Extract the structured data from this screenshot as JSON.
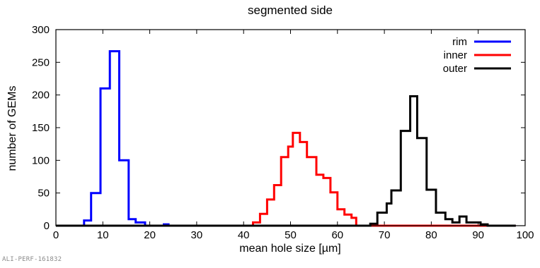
{
  "chart_data": {
    "type": "step-histogram",
    "title": "segmented side",
    "xlabel": "mean hole size [µm]",
    "ylabel": "number of GEMs",
    "xlim": [
      0,
      100
    ],
    "ylim": [
      0,
      300
    ],
    "xticks": [
      0,
      10,
      20,
      30,
      40,
      50,
      60,
      70,
      80,
      90,
      100
    ],
    "yticks": [
      0,
      50,
      100,
      150,
      200,
      250,
      300
    ],
    "grid": false,
    "legend_position": "top-right",
    "series": [
      {
        "name": "rim",
        "color": "#0000ff",
        "points": [
          [
            0,
            0
          ],
          [
            6,
            0
          ],
          [
            6,
            8
          ],
          [
            7.5,
            8
          ],
          [
            7.5,
            50
          ],
          [
            9.5,
            50
          ],
          [
            9.5,
            210
          ],
          [
            11.5,
            210
          ],
          [
            11.5,
            267
          ],
          [
            13.5,
            267
          ],
          [
            13.5,
            100
          ],
          [
            15.5,
            100
          ],
          [
            15.5,
            10
          ],
          [
            17,
            10
          ],
          [
            17,
            5
          ],
          [
            19,
            5
          ],
          [
            19,
            0
          ],
          [
            23,
            0
          ],
          [
            23,
            2
          ],
          [
            24,
            2
          ],
          [
            24,
            0
          ],
          [
            98,
            0
          ]
        ]
      },
      {
        "name": "inner",
        "color": "#ff0000",
        "points": [
          [
            0,
            0
          ],
          [
            42,
            0
          ],
          [
            42,
            5
          ],
          [
            43.5,
            5
          ],
          [
            43.5,
            18
          ],
          [
            45,
            18
          ],
          [
            45,
            40
          ],
          [
            46.5,
            40
          ],
          [
            46.5,
            62
          ],
          [
            48,
            62
          ],
          [
            48,
            105
          ],
          [
            49.5,
            105
          ],
          [
            49.5,
            121
          ],
          [
            50.5,
            121
          ],
          [
            50.5,
            142
          ],
          [
            52,
            142
          ],
          [
            52,
            128
          ],
          [
            53.5,
            128
          ],
          [
            53.5,
            105
          ],
          [
            55.5,
            105
          ],
          [
            55.5,
            78
          ],
          [
            57,
            78
          ],
          [
            57,
            73
          ],
          [
            58.5,
            73
          ],
          [
            58.5,
            51
          ],
          [
            60,
            51
          ],
          [
            60,
            25
          ],
          [
            61.5,
            25
          ],
          [
            61.5,
            17
          ],
          [
            63,
            17
          ],
          [
            63,
            12
          ],
          [
            64,
            12
          ],
          [
            64,
            0
          ],
          [
            98,
            0
          ]
        ]
      },
      {
        "name": "outer",
        "color": "#000000",
        "points": [
          [
            0,
            0
          ],
          [
            67,
            0
          ],
          [
            67,
            3
          ],
          [
            68.5,
            3
          ],
          [
            68.5,
            20
          ],
          [
            70.5,
            20
          ],
          [
            70.5,
            34
          ],
          [
            71.5,
            34
          ],
          [
            71.5,
            54
          ],
          [
            73.5,
            54
          ],
          [
            73.5,
            145
          ],
          [
            75.5,
            145
          ],
          [
            75.5,
            198
          ],
          [
            77,
            198
          ],
          [
            77,
            134
          ],
          [
            79,
            134
          ],
          [
            79,
            55
          ],
          [
            81,
            55
          ],
          [
            81,
            20
          ],
          [
            83,
            20
          ],
          [
            83,
            10
          ],
          [
            84.5,
            10
          ],
          [
            84.5,
            5
          ],
          [
            86,
            5
          ],
          [
            86,
            14
          ],
          [
            87.5,
            14
          ],
          [
            87.5,
            5
          ],
          [
            89,
            5
          ],
          [
            89,
            5
          ],
          [
            90.5,
            5
          ],
          [
            90.5,
            2
          ],
          [
            92,
            2
          ],
          [
            92,
            0
          ],
          [
            98,
            0
          ]
        ]
      }
    ]
  },
  "watermark": "ALI-PERF-161832"
}
